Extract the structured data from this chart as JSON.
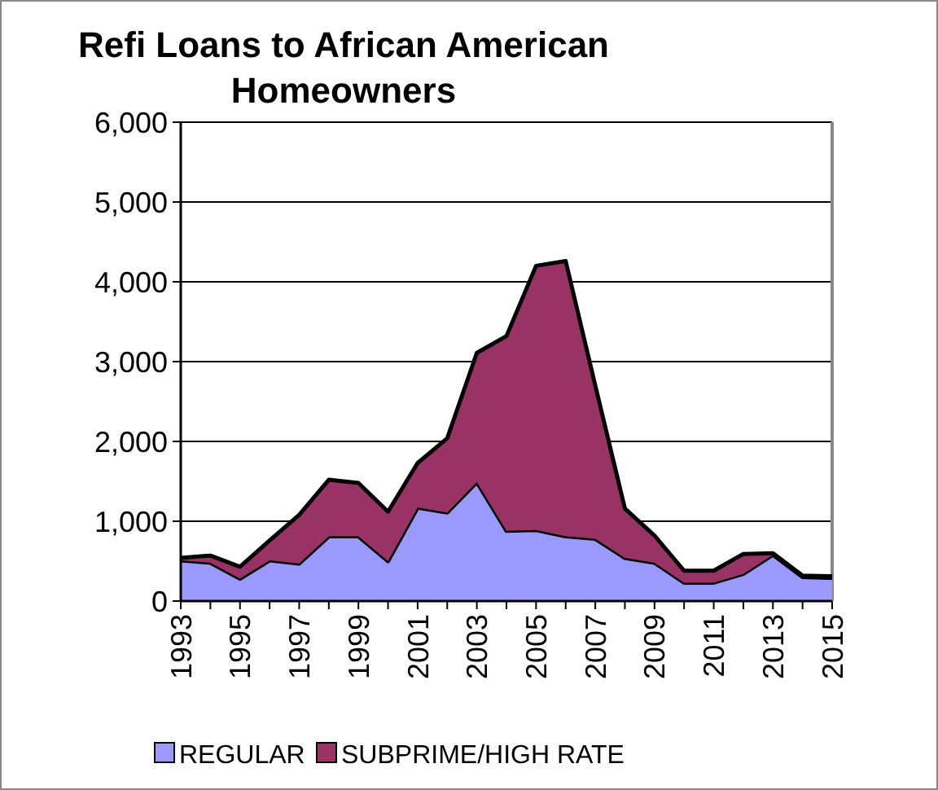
{
  "chart_data": {
    "type": "area",
    "stacked": true,
    "title": "Refi Loans to African American Homeowners",
    "x": [
      1993,
      1994,
      1995,
      1996,
      1997,
      1998,
      1999,
      2000,
      2001,
      2002,
      2003,
      2004,
      2005,
      2006,
      2007,
      2008,
      2009,
      2010,
      2011,
      2012,
      2013,
      2014,
      2015
    ],
    "series": [
      {
        "name": "REGULAR",
        "color": "#9999ff",
        "values": [
          510,
          480,
          280,
          510,
          470,
          810,
          810,
          500,
          1170,
          1110,
          1490,
          880,
          890,
          810,
          780,
          540,
          480,
          230,
          230,
          340,
          580,
          300,
          290
        ]
      },
      {
        "name": "SUBPRIME/HIGH RATE",
        "color": "#993366",
        "values": [
          30,
          90,
          150,
          250,
          610,
          710,
          670,
          620,
          560,
          930,
          1620,
          2440,
          3310,
          3450,
          1920,
          620,
          340,
          150,
          150,
          250,
          20,
          20,
          20
        ]
      }
    ],
    "xlim": [
      1993,
      2015
    ],
    "xticks": [
      1993,
      {
        "value": 1994,
        "label": null
      },
      1995,
      {
        "value": 1996,
        "label": null
      },
      1997,
      {
        "value": 1998,
        "label": null
      },
      1999,
      {
        "value": 2000,
        "label": null
      },
      2001,
      {
        "value": 2002,
        "label": null
      },
      2003,
      {
        "value": 2004,
        "label": null
      },
      2005,
      {
        "value": 2006,
        "label": null
      },
      2007,
      {
        "value": 2008,
        "label": null
      },
      2009,
      {
        "value": 2010,
        "label": null
      },
      2011,
      {
        "value": 2012,
        "label": null
      },
      2013,
      {
        "value": 2014,
        "label": null
      },
      2015
    ],
    "ylim": [
      0,
      6000
    ],
    "yticks": [
      {
        "value": 0,
        "label": "0"
      },
      {
        "value": 1000,
        "label": "1,000"
      },
      {
        "value": 2000,
        "label": "2,000"
      },
      {
        "value": 3000,
        "label": "3,000"
      },
      {
        "value": 4000,
        "label": "4,000"
      },
      {
        "value": 5000,
        "label": "5,000"
      },
      {
        "value": 6000,
        "label": "6,000"
      }
    ],
    "grid": "y",
    "legend": "bottom"
  }
}
